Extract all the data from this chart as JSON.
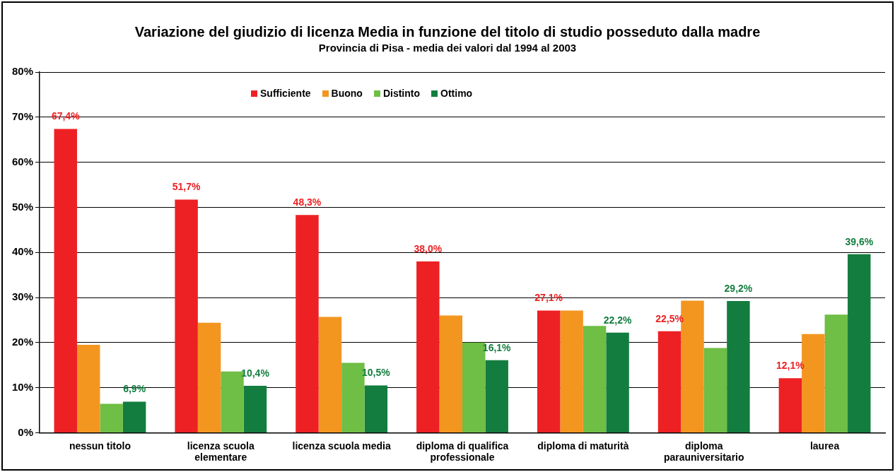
{
  "chart_data": {
    "type": "bar",
    "title": "Variazione del giudizio di licenza Media in funzione del titolo di studio posseduto dalla madre",
    "subtitle": "Provincia di Pisa - media dei valori dal 1994 al 2003",
    "categories": [
      "nessun titolo",
      "licenza scuola elementare",
      "licenza scuola media",
      "diploma di qualifica professionale",
      "diploma di maturità",
      "diploma parauniversitario",
      "laurea"
    ],
    "series": [
      {
        "name": "Sufficiente",
        "color": "#ed2124",
        "values": [
          67.4,
          51.7,
          48.3,
          38.0,
          27.1,
          22.5,
          12.1
        ],
        "value_labels": [
          "67,4%",
          "51,7%",
          "48,3%",
          "38,0%",
          "27,1%",
          "22,5%",
          "12,1%"
        ]
      },
      {
        "name": "Buono",
        "color": "#f39620",
        "values": [
          19.5,
          24.4,
          25.7,
          26.0,
          27.1,
          29.3,
          21.9
        ]
      },
      {
        "name": "Distinto",
        "color": "#6fbe45",
        "values": [
          6.4,
          13.6,
          15.5,
          20.0,
          23.7,
          18.8,
          26.2
        ]
      },
      {
        "name": "Ottimo",
        "color": "#137d3f",
        "values": [
          6.9,
          10.4,
          10.5,
          16.1,
          22.2,
          29.2,
          39.6
        ],
        "value_labels": [
          "6,9%",
          "10,4%",
          "10,5%",
          "16,1%",
          "22,2%",
          "29,2%",
          "39,6%"
        ]
      }
    ],
    "ylim": [
      0,
      80
    ],
    "yticks": [
      {
        "value": 0,
        "label": "0%"
      },
      {
        "value": 10,
        "label": "10%"
      },
      {
        "value": 20,
        "label": "20%"
      },
      {
        "value": 30,
        "label": "30%"
      },
      {
        "value": 40,
        "label": "40%"
      },
      {
        "value": 50,
        "label": "50%"
      },
      {
        "value": 60,
        "label": "60%"
      },
      {
        "value": 70,
        "label": "70%"
      },
      {
        "value": 80,
        "label": "80%"
      }
    ],
    "grid": "y",
    "legend": "top left"
  }
}
